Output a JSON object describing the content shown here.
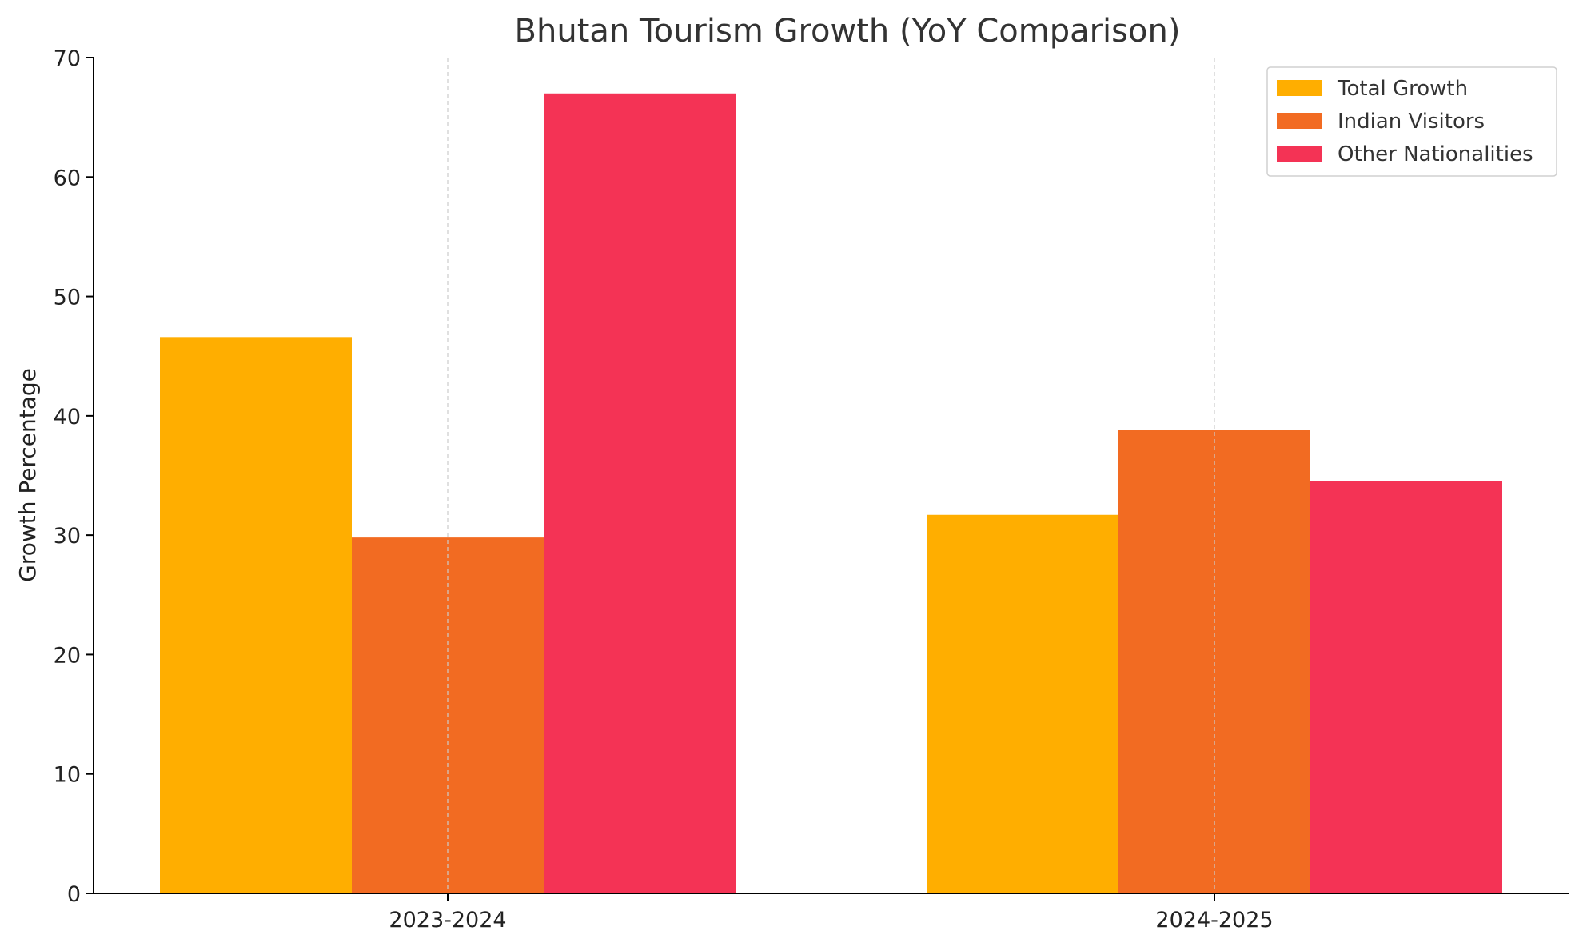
{
  "chart_data": {
    "type": "bar",
    "title": "Bhutan Tourism Growth (YoY Comparison)",
    "xlabel": "",
    "ylabel": "Growth Percentage",
    "categories": [
      "2023-2024",
      "2024-2025"
    ],
    "series": [
      {
        "name": "Total Growth",
        "values": [
          46.6,
          31.7
        ],
        "color": "#ffae00"
      },
      {
        "name": "Indian Visitors",
        "values": [
          29.8,
          38.8
        ],
        "color": "#f26b22"
      },
      {
        "name": "Other Nationalities",
        "values": [
          67.0,
          34.5
        ],
        "color": "#f43355"
      }
    ],
    "ylim": [
      0,
      70
    ],
    "yticks": [
      0,
      10,
      20,
      30,
      40,
      50,
      60,
      70
    ],
    "grid": {
      "x": true,
      "y": false,
      "style": "dashed",
      "color": "#cccccc"
    },
    "legend": {
      "position": "top-right"
    },
    "colors": {
      "axis": "#000000",
      "text": "#222222"
    }
  }
}
